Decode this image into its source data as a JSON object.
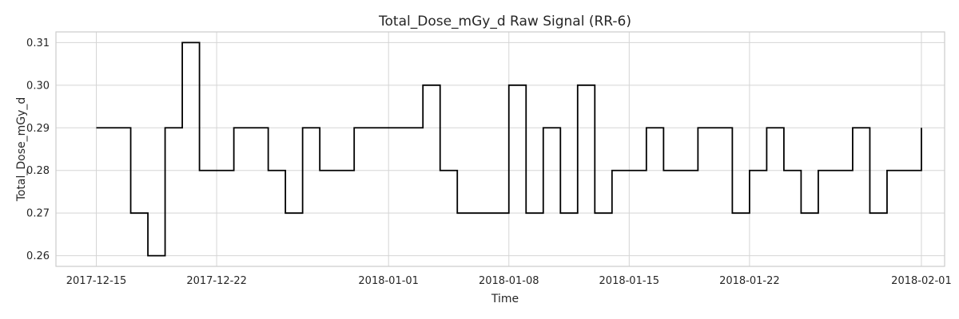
{
  "chart_data": {
    "type": "line",
    "style": "step",
    "title": "Total_Dose_mGy_d Raw Signal (RR-6)",
    "xlabel": "Time",
    "ylabel": "Total_Dose_mGy_d",
    "x_day_offset_range": [
      -2.35,
      49.35
    ],
    "x_origin_date": "2017-12-15",
    "ylim": [
      0.2575,
      0.3125
    ],
    "y_ticks": [
      {
        "value": 0.26,
        "label": "0.26"
      },
      {
        "value": 0.27,
        "label": "0.27"
      },
      {
        "value": 0.28,
        "label": "0.28"
      },
      {
        "value": 0.29,
        "label": "0.29"
      },
      {
        "value": 0.3,
        "label": "0.30"
      },
      {
        "value": 0.31,
        "label": "0.31"
      }
    ],
    "x_ticks": [
      {
        "day": 0,
        "label": "2017-12-15"
      },
      {
        "day": 7,
        "label": "2017-12-22"
      },
      {
        "day": 17,
        "label": "2018-01-01"
      },
      {
        "day": 24,
        "label": "2018-01-08"
      },
      {
        "day": 31,
        "label": "2018-01-15"
      },
      {
        "day": 38,
        "label": "2018-01-22"
      },
      {
        "day": 48,
        "label": "2018-02-01"
      }
    ],
    "grid": true,
    "series": [
      {
        "name": "Total_Dose_mGy_d",
        "color": "#000000",
        "x_days": [
          0,
          1,
          2,
          3,
          4,
          5,
          6,
          7,
          8,
          9,
          10,
          11,
          12,
          13,
          14,
          15,
          16,
          17,
          18,
          19,
          20,
          21,
          22,
          23,
          24,
          25,
          26,
          27,
          28,
          29,
          30,
          31,
          32,
          33,
          34,
          35,
          36,
          37,
          38,
          39,
          40,
          41,
          42,
          43,
          44,
          45,
          46,
          47,
          48
        ],
        "values": [
          0.29,
          0.29,
          0.27,
          0.26,
          0.29,
          0.31,
          0.28,
          0.28,
          0.29,
          0.29,
          0.28,
          0.27,
          0.29,
          0.28,
          0.28,
          0.29,
          0.29,
          0.29,
          0.29,
          0.3,
          0.28,
          0.27,
          0.27,
          0.27,
          0.3,
          0.27,
          0.29,
          0.27,
          0.3,
          0.27,
          0.28,
          0.28,
          0.29,
          0.28,
          0.28,
          0.29,
          0.29,
          0.27,
          0.28,
          0.29,
          0.28,
          0.27,
          0.28,
          0.28,
          0.29,
          0.27,
          0.28,
          0.28,
          0.29
        ]
      }
    ]
  }
}
